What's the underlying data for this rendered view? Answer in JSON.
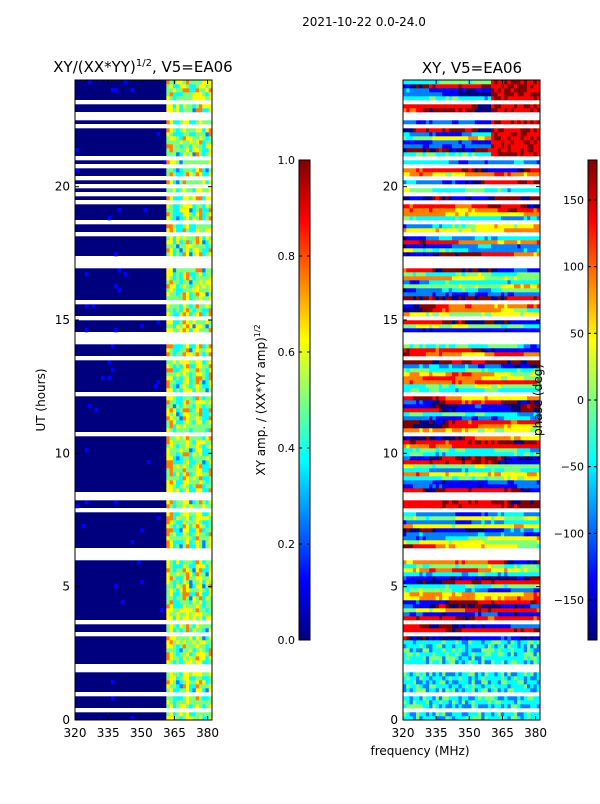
{
  "suptitle": "2021-10-22 0.0-24.0",
  "colors": {
    "background": "#ffffff",
    "data_gap": "#ffffff",
    "colormap": [
      "#00007f",
      "#0000ff",
      "#007fff",
      "#00ffff",
      "#7fff7f",
      "#ffff00",
      "#ff7f00",
      "#ff0000",
      "#7f0000"
    ]
  },
  "chart_data": [
    {
      "type": "heatmap",
      "title_base": "XY/(XX*YY)",
      "title_sup": "1/2",
      "title_suffix": ", V5=EA06",
      "xlabel": "",
      "ylabel": "UT (hours)",
      "xlim": [
        320,
        382
      ],
      "ylim": [
        0,
        24
      ],
      "xticks": [
        "320",
        "335",
        "350",
        "365",
        "380"
      ],
      "yticks": [
        "0",
        "5",
        "10",
        "15",
        "20"
      ],
      "colorbar": {
        "label": "XY amp. / (XX*YY amp)",
        "label_sup": "1/2",
        "range": [
          0.0,
          1.0
        ],
        "ticks": [
          "0.0",
          "0.2",
          "0.4",
          "0.6",
          "0.8",
          "1.0"
        ]
      }
    },
    {
      "type": "heatmap",
      "title_base": "XY, V5=EA06",
      "xlabel": "frequency (MHz)",
      "ylabel": "",
      "xlim": [
        320,
        382
      ],
      "ylim": [
        0,
        24
      ],
      "xticks": [
        "320",
        "335",
        "350",
        "365",
        "380"
      ],
      "yticks": [
        "0",
        "5",
        "10",
        "15",
        "20"
      ],
      "colorbar": {
        "label": "phase (deg)",
        "range": [
          -180,
          180
        ],
        "ticks": [
          "−150",
          "−100",
          "−50",
          "0",
          "50",
          "100",
          "150"
        ]
      }
    }
  ]
}
